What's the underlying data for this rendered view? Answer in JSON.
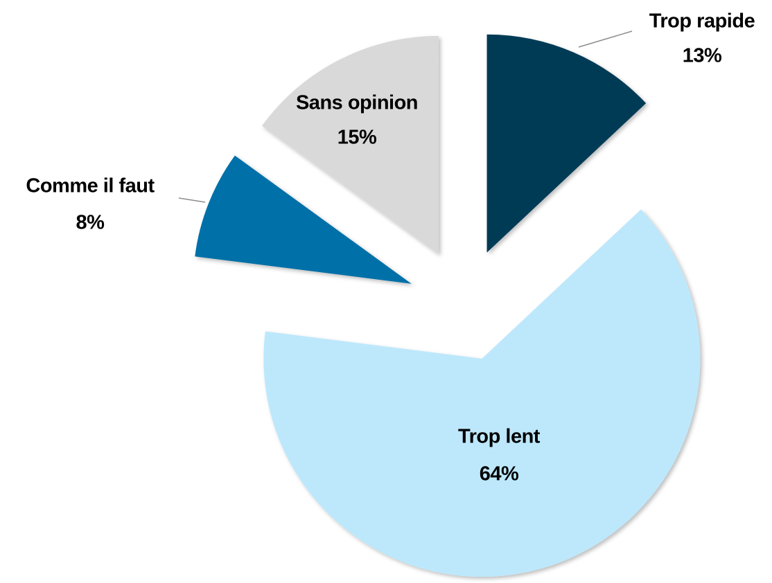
{
  "chart_data": {
    "type": "pie",
    "categories": [
      "Trop rapide",
      "Trop lent",
      "Comme il faut",
      "Sans opinion"
    ],
    "values": [
      13,
      64,
      8,
      15
    ],
    "value_labels": [
      "13%",
      "64%",
      "8%",
      "15%"
    ],
    "colors": [
      "#003a56",
      "#bde8fc",
      "#0070a8",
      "#d9d9d9"
    ]
  }
}
